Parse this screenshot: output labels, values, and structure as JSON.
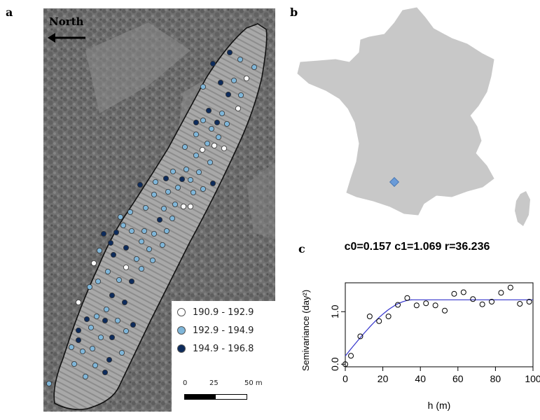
{
  "panels": {
    "a": "a",
    "b": "b",
    "c": "c"
  },
  "north_label": "North",
  "legend": {
    "items": [
      {
        "label": "190.9 - 192.9",
        "color": "#ffffff"
      },
      {
        "label": "192.9 - 194.9",
        "color": "#7fb6d9"
      },
      {
        "label": "194.9 - 196.8",
        "color": "#0d2b5b"
      }
    ]
  },
  "scale_bar": {
    "ticks": [
      "0",
      "25",
      "50 m"
    ]
  },
  "location_marker_color": "#6a9bd8",
  "chart_data": {
    "type": "scatter",
    "title": "c0=0.157 c1=1.069 r=36.236",
    "xlabel": "h (m)",
    "ylabel": "Semivariance (day²)",
    "xlim": [
      0,
      100
    ],
    "ylim": [
      -0.05,
      1.55
    ],
    "xticks": [
      0,
      20,
      40,
      60,
      80,
      100
    ],
    "yticks": [
      0.0,
      1.0
    ],
    "ytick_labels": [
      "0.0",
      "1.0"
    ],
    "grid": false,
    "points": {
      "x": [
        0,
        3,
        8,
        13,
        18,
        23,
        28,
        33,
        38,
        43,
        48,
        53,
        58,
        63,
        68,
        73,
        78,
        83,
        88,
        93,
        98
      ],
      "y": [
        0.0,
        0.16,
        0.53,
        0.91,
        0.82,
        0.91,
        1.13,
        1.26,
        1.12,
        1.16,
        1.12,
        1.02,
        1.34,
        1.37,
        1.24,
        1.14,
        1.19,
        1.36,
        1.46,
        1.15,
        1.19
      ]
    },
    "model": {
      "c0": 0.157,
      "c1": 1.069,
      "r": 36.236,
      "type": "spherical",
      "color": "#3333cc"
    }
  }
}
